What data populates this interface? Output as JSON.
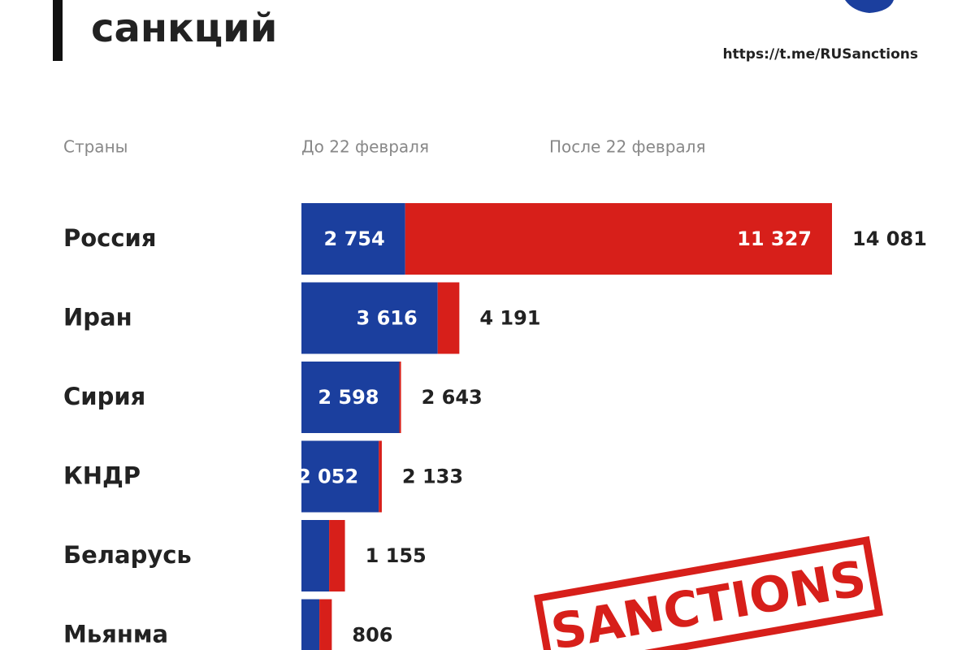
{
  "chart_data": {
    "type": "stacked-barh",
    "title": "санкций",
    "source": "https://t.me/RUSanctions",
    "column_headers": [
      "Страны",
      "До 22 февраля",
      "После 22 февраля"
    ],
    "categories": [
      "Россия",
      "Иран",
      "Сирия",
      "КНДР",
      "Беларусь",
      "Мьянма"
    ],
    "series": [
      {
        "name": "До 22 февраля",
        "color": "#1b3f9e",
        "values": [
          2754,
          3616,
          2598,
          2052,
          735,
          476
        ],
        "value_labels": [
          "2 754",
          "3 616",
          "2 598",
          "2 052",
          null,
          null
        ]
      },
      {
        "name": "После 22 февраля",
        "color": "#d71f1a",
        "values": [
          11327,
          575,
          45,
          81,
          420,
          330
        ],
        "value_labels": [
          "11 327",
          null,
          null,
          null,
          null,
          null
        ]
      }
    ],
    "total_labels": [
      "14 081",
      "4 191",
      "2 643",
      "2 133",
      "1 155",
      "806"
    ],
    "stamp": "SANCTIONS"
  }
}
